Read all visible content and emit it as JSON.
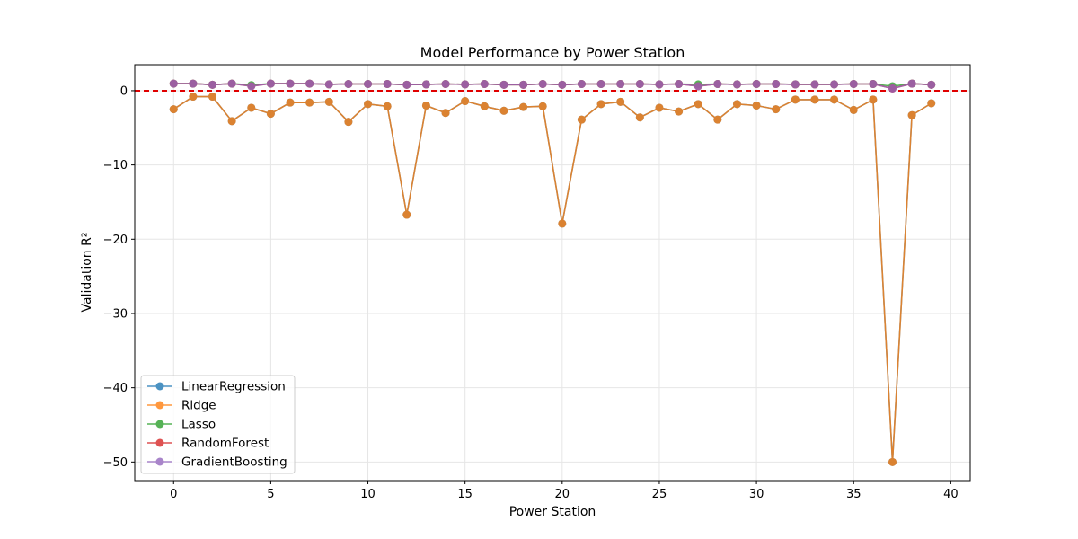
{
  "chart_data": {
    "type": "line",
    "title": "Model Performance by Power Station",
    "xlabel": "Power Station",
    "ylabel": "Validation R²",
    "xlim": [
      -2,
      41
    ],
    "ylim": [
      -52.5,
      3.5
    ],
    "xticks": [
      0,
      5,
      10,
      15,
      20,
      25,
      30,
      35,
      40
    ],
    "yticks": [
      0,
      -10,
      -20,
      -30,
      -40,
      -50
    ],
    "grid": true,
    "legend_position": "lower-left",
    "reference_line": {
      "y": 0,
      "color": "#e00000",
      "style": "dashed"
    },
    "x": [
      0,
      1,
      2,
      3,
      4,
      5,
      6,
      7,
      8,
      9,
      10,
      11,
      12,
      13,
      14,
      15,
      16,
      17,
      18,
      19,
      20,
      21,
      22,
      23,
      24,
      25,
      26,
      27,
      28,
      29,
      30,
      31,
      32,
      33,
      34,
      35,
      36,
      37,
      38,
      39
    ],
    "series": [
      {
        "name": "LinearRegression",
        "color": "#1f77b4",
        "values": [
          -2.5,
          -0.8,
          -0.8,
          -4.1,
          -2.3,
          -3.1,
          -1.6,
          -1.6,
          -1.5,
          -4.2,
          -1.8,
          -2.1,
          -16.7,
          -2.0,
          -3.0,
          -1.4,
          -2.1,
          -2.7,
          -2.2,
          -2.1,
          -17.9,
          -3.9,
          -1.8,
          -1.5,
          -3.6,
          -2.3,
          -2.8,
          -1.8,
          -3.9,
          -1.8,
          -2.0,
          -2.5,
          -1.2,
          -1.2,
          -1.2,
          -2.6,
          -1.2,
          -50.0,
          -3.3,
          -1.7
        ]
      },
      {
        "name": "Ridge",
        "color": "#ff7f0e",
        "values": [
          -2.5,
          -0.8,
          -0.8,
          -4.1,
          -2.3,
          -3.1,
          -1.6,
          -1.6,
          -1.5,
          -4.2,
          -1.8,
          -2.1,
          -16.7,
          -2.0,
          -3.0,
          -1.4,
          -2.1,
          -2.7,
          -2.2,
          -2.1,
          -17.9,
          -3.9,
          -1.8,
          -1.5,
          -3.6,
          -2.3,
          -2.8,
          -1.8,
          -3.9,
          -1.8,
          -2.0,
          -2.5,
          -1.2,
          -1.2,
          -1.2,
          -2.6,
          -1.2,
          -50.0,
          -3.3,
          -1.7
        ]
      },
      {
        "name": "Lasso",
        "color": "#2ca02c",
        "values": [
          0.95,
          0.95,
          0.8,
          0.95,
          0.75,
          0.95,
          0.95,
          0.95,
          0.85,
          0.9,
          0.9,
          0.9,
          0.8,
          0.85,
          0.9,
          0.85,
          0.9,
          0.8,
          0.8,
          0.9,
          0.8,
          0.9,
          0.9,
          0.9,
          0.9,
          0.85,
          0.9,
          0.85,
          0.9,
          0.85,
          0.9,
          0.9,
          0.85,
          0.85,
          0.85,
          0.9,
          0.9,
          0.6,
          0.95,
          0.8
        ]
      },
      {
        "name": "RandomForest",
        "color": "#d62728",
        "values": [
          0.95,
          0.95,
          0.8,
          0.95,
          0.6,
          0.95,
          0.95,
          0.95,
          0.85,
          0.9,
          0.9,
          0.9,
          0.8,
          0.85,
          0.9,
          0.85,
          0.9,
          0.8,
          0.8,
          0.9,
          0.8,
          0.9,
          0.9,
          0.9,
          0.9,
          0.85,
          0.9,
          0.6,
          0.9,
          0.85,
          0.9,
          0.9,
          0.85,
          0.85,
          0.85,
          0.9,
          0.9,
          0.3,
          0.95,
          0.8
        ]
      },
      {
        "name": "GradientBoosting",
        "color": "#9467bd",
        "values": [
          0.95,
          0.95,
          0.8,
          0.95,
          0.6,
          0.95,
          0.95,
          0.95,
          0.85,
          0.9,
          0.9,
          0.9,
          0.8,
          0.85,
          0.9,
          0.85,
          0.9,
          0.8,
          0.8,
          0.9,
          0.8,
          0.9,
          0.9,
          0.9,
          0.9,
          0.85,
          0.9,
          0.6,
          0.9,
          0.85,
          0.9,
          0.9,
          0.85,
          0.85,
          0.85,
          0.9,
          0.9,
          0.3,
          0.95,
          0.8
        ]
      }
    ]
  }
}
